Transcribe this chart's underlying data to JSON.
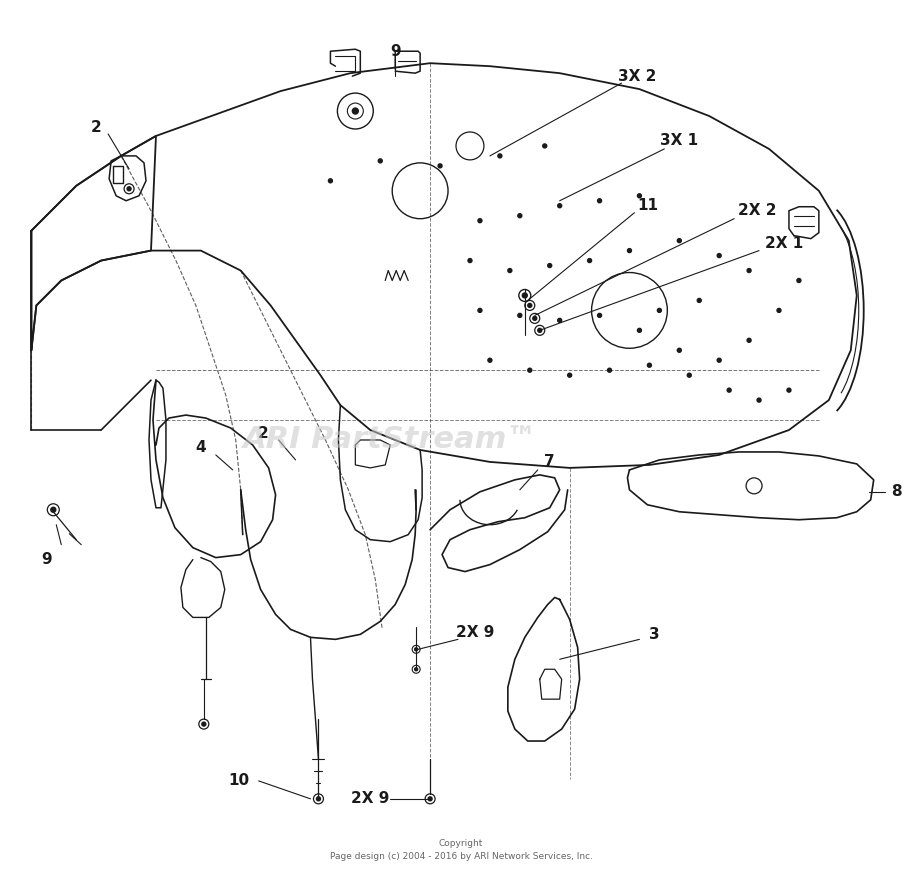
{
  "bg_color": "#ffffff",
  "watermark_text": "ARI PartStream™",
  "watermark_color": "#c8c8c8",
  "watermark_fontsize": 22,
  "watermark_alpha": 0.55,
  "copyright_line1": "Copyright",
  "copyright_line2": "Page design (c) 2004 - 2016 by ARI Network Services, Inc.",
  "copyright_fontsize": 6.5,
  "line_color": "#1a1a1a",
  "line_color_light": "#555555",
  "lw_main": 1.1,
  "lw_thin": 0.7,
  "lw_thick": 1.4
}
